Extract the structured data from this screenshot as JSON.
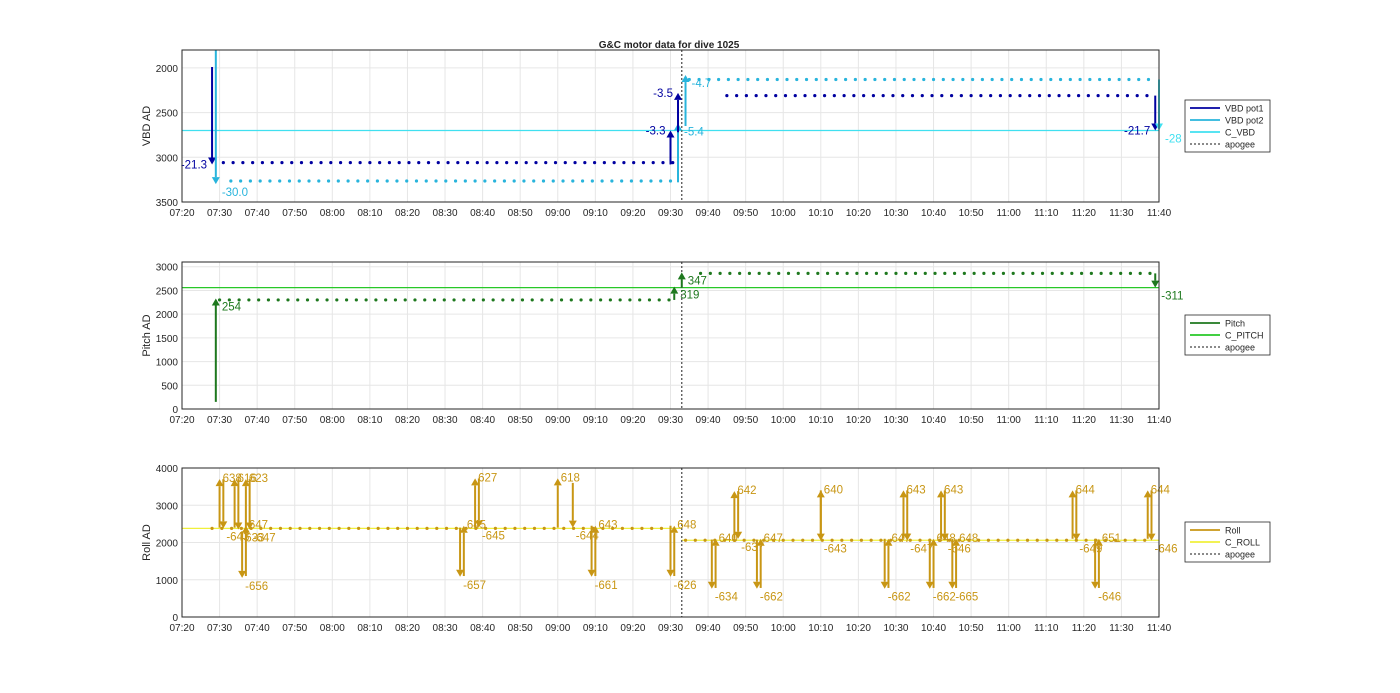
{
  "figure": {
    "title": "G&C motor data for dive 1025"
  },
  "chart_data": [
    {
      "type": "scatter",
      "title": "G&C motor data for dive 1025",
      "xlabel": "",
      "ylabel": "VBD AD",
      "reversed_y": true,
      "xlim": [
        "07:20",
        "11:40"
      ],
      "ylim": [
        1800,
        3500
      ],
      "x_ticks": [
        "07:20",
        "07:30",
        "07:40",
        "07:50",
        "08:00",
        "08:10",
        "08:20",
        "08:30",
        "08:40",
        "08:50",
        "09:00",
        "09:10",
        "09:20",
        "09:30",
        "09:40",
        "09:50",
        "10:00",
        "10:10",
        "10:20",
        "10:30",
        "10:40",
        "10:50",
        "11:00",
        "11:10",
        "11:20",
        "11:30",
        "11:40"
      ],
      "y_ticks": [
        2000,
        2500,
        3000,
        3500
      ],
      "grid": true,
      "legend": {
        "placement": "outside-right",
        "entries": [
          {
            "label": "VBD pot1",
            "color": "#0000a0",
            "style": "solid"
          },
          {
            "label": "VBD pot2",
            "color": "#28b4dc",
            "style": "solid"
          },
          {
            "label": "C_VBD",
            "color": "#40e0f0",
            "style": "solid"
          },
          {
            "label": "apogee",
            "color": "#444444",
            "style": "dotted"
          }
        ]
      },
      "apogee_time": "09:33",
      "series": [
        {
          "name": "VBD pot1",
          "color": "#0000a0",
          "y_segments": [
            {
              "from": "07:31",
              "to": "09:31",
              "y": 3060
            },
            {
              "from": "09:45",
              "to": "11:38",
              "y": 2310
            }
          ]
        },
        {
          "name": "VBD pot2",
          "color": "#28b4dc",
          "y_segments": [
            {
              "from": "07:33",
              "to": "09:31",
              "y": 3265
            },
            {
              "from": "09:35",
              "to": "11:38",
              "y": 2130
            }
          ]
        },
        {
          "name": "C_VBD",
          "color": "#40e0f0",
          "hline": 2700
        }
      ],
      "moves": [
        {
          "t": "07:28",
          "from": 1990,
          "to": 3080,
          "color": "#0000a0",
          "label": "-21.3",
          "label_side": "left"
        },
        {
          "t": "07:29",
          "from": 1800,
          "to": 3300,
          "color": "#28b4dc",
          "label": "-30.0",
          "label_side": "right"
        },
        {
          "t": "09:30",
          "from": 3080,
          "to": 2700,
          "color": "#0000a0",
          "label": "-3.3",
          "label_side": "left"
        },
        {
          "t": "09:32",
          "from": 3280,
          "to": 2620,
          "color": "#28b4dc",
          "label": "-5.4",
          "label_side": "right"
        },
        {
          "t": "09:32",
          "from": 2720,
          "to": 2280,
          "color": "#0000a0",
          "label": "-3.5",
          "label_side": "left"
        },
        {
          "t": "09:34",
          "from": 2650,
          "to": 2080,
          "color": "#28b4dc",
          "label": "-4.7",
          "label_side": "right"
        },
        {
          "t": "11:39",
          "from": 2310,
          "to": 2700,
          "color": "#0000a0",
          "label": "-21.7",
          "label_side": "left"
        },
        {
          "t": "11:40",
          "from": 2130,
          "to": 2700,
          "color": "#40e0f0",
          "label": "-28",
          "label_side": "right"
        }
      ]
    },
    {
      "type": "scatter",
      "xlabel": "",
      "ylabel": "Pitch AD",
      "xlim": [
        "07:20",
        "11:40"
      ],
      "ylim": [
        0,
        3100
      ],
      "x_ticks": [
        "07:20",
        "07:30",
        "07:40",
        "07:50",
        "08:00",
        "08:10",
        "08:20",
        "08:30",
        "08:40",
        "08:50",
        "09:00",
        "09:10",
        "09:20",
        "09:30",
        "09:40",
        "09:50",
        "10:00",
        "10:10",
        "10:20",
        "10:30",
        "10:40",
        "10:50",
        "11:00",
        "11:10",
        "11:20",
        "11:30",
        "11:40"
      ],
      "y_ticks": [
        0,
        500,
        1000,
        1500,
        2000,
        2500,
        3000
      ],
      "grid": true,
      "legend": {
        "placement": "outside-right",
        "entries": [
          {
            "label": "Pitch",
            "color": "#1e781e",
            "style": "solid"
          },
          {
            "label": "C_PITCH",
            "color": "#28c828",
            "style": "solid"
          },
          {
            "label": "apogee",
            "color": "#444444",
            "style": "dotted"
          }
        ]
      },
      "apogee_time": "09:33",
      "series": [
        {
          "name": "Pitch",
          "color": "#1e781e",
          "y_segments": [
            {
              "from": "07:30",
              "to": "09:30",
              "y": 2300
            },
            {
              "from": "09:38",
              "to": "11:38",
              "y": 2860
            }
          ]
        },
        {
          "name": "C_PITCH",
          "color": "#28c828",
          "hline": 2560
        }
      ],
      "moves": [
        {
          "t": "07:29",
          "from": 150,
          "to": 2330,
          "color": "#1e781e",
          "label": "254",
          "label_side": "right"
        },
        {
          "t": "09:31",
          "from": 2300,
          "to": 2580,
          "color": "#1e781e",
          "label": "319",
          "label_side": "right"
        },
        {
          "t": "09:33",
          "from": 2560,
          "to": 2880,
          "color": "#1e781e",
          "label": "347",
          "label_side": "right"
        },
        {
          "t": "11:39",
          "from": 2860,
          "to": 2560,
          "color": "#1e781e",
          "label": "-311",
          "label_side": "right"
        }
      ]
    },
    {
      "type": "scatter",
      "xlabel": "",
      "ylabel": "Roll AD",
      "xlim": [
        "07:20",
        "11:40"
      ],
      "ylim": [
        0,
        4000
      ],
      "x_ticks": [
        "07:20",
        "07:30",
        "07:40",
        "07:50",
        "08:00",
        "08:10",
        "08:20",
        "08:30",
        "08:40",
        "08:50",
        "09:00",
        "09:10",
        "09:20",
        "09:30",
        "09:40",
        "09:50",
        "10:00",
        "10:10",
        "10:20",
        "10:30",
        "10:40",
        "10:50",
        "11:00",
        "11:10",
        "11:20",
        "11:30",
        "11:40"
      ],
      "y_ticks": [
        0,
        1000,
        2000,
        3000,
        4000
      ],
      "grid": true,
      "legend": {
        "placement": "outside-right",
        "entries": [
          {
            "label": "Roll",
            "color": "#c89614",
            "style": "solid"
          },
          {
            "label": "C_ROLL",
            "color": "#f0f03c",
            "style": "solid"
          },
          {
            "label": "apogee",
            "color": "#444444",
            "style": "dotted"
          }
        ]
      },
      "apogee_time": "09:33",
      "series": [
        {
          "name": "Roll",
          "color": "#c89614",
          "y_segments": [
            {
              "from": "07:28",
              "to": "09:30",
              "y": 2380
            },
            {
              "from": "09:34",
              "to": "11:38",
              "y": 2060
            }
          ]
        },
        {
          "name": "C_ROLL",
          "color": "#f0f03c",
          "hline_segments": [
            {
              "from": "07:20",
              "to": "09:33",
              "y": 2380
            },
            {
              "from": "09:33",
              "to": "11:40",
              "y": 2060
            }
          ]
        }
      ],
      "moves": [
        {
          "t": "07:30",
          "from": 2400,
          "to": 3700,
          "label": "638",
          "dir": "up"
        },
        {
          "t": "07:31",
          "from": 3700,
          "to": 2380,
          "label": "-643",
          "dir": "down"
        },
        {
          "t": "07:34",
          "from": 2400,
          "to": 3700,
          "label": "616",
          "dir": "up"
        },
        {
          "t": "07:35",
          "from": 3700,
          "to": 2350,
          "label": "-633",
          "dir": "down"
        },
        {
          "t": "07:36",
          "from": 2300,
          "to": 1050,
          "label": "-656",
          "dir": "down"
        },
        {
          "t": "07:37",
          "from": 1100,
          "to": 2450,
          "label": "647",
          "dir": "up"
        },
        {
          "t": "07:37",
          "from": 2400,
          "to": 3700,
          "label": "623",
          "dir": "up"
        },
        {
          "t": "07:38",
          "from": 3700,
          "to": 2350,
          "label": "-647",
          "dir": "down"
        },
        {
          "t": "08:34",
          "from": 2400,
          "to": 1080,
          "label": "-657",
          "dir": "down"
        },
        {
          "t": "08:35",
          "from": 1100,
          "to": 2450,
          "label": "645",
          "dir": "up"
        },
        {
          "t": "08:38",
          "from": 2400,
          "to": 3720,
          "label": "627",
          "dir": "up"
        },
        {
          "t": "08:39",
          "from": 3720,
          "to": 2400,
          "label": "-645",
          "dir": "down"
        },
        {
          "t": "09:00",
          "from": 2400,
          "to": 3720,
          "label": "618",
          "dir": "up"
        },
        {
          "t": "09:04",
          "from": 3600,
          "to": 2400,
          "label": "-644",
          "dir": "down"
        },
        {
          "t": "09:09",
          "from": 2450,
          "to": 1080,
          "label": "-661",
          "dir": "down"
        },
        {
          "t": "09:10",
          "from": 1100,
          "to": 2450,
          "label": "643",
          "dir": "up"
        },
        {
          "t": "09:30",
          "from": 2450,
          "to": 1080,
          "label": "-626",
          "dir": "down"
        },
        {
          "t": "09:31",
          "from": 1100,
          "to": 2450,
          "label": "648",
          "dir": "up"
        },
        {
          "t": "09:41",
          "from": 2080,
          "to": 760,
          "label": "-634",
          "dir": "down"
        },
        {
          "t": "09:42",
          "from": 780,
          "to": 2100,
          "label": "640",
          "dir": "up"
        },
        {
          "t": "09:47",
          "from": 2100,
          "to": 3380,
          "label": "642",
          "dir": "up"
        },
        {
          "t": "09:48",
          "from": 3380,
          "to": 2100,
          "label": "-637",
          "dir": "down"
        },
        {
          "t": "09:53",
          "from": 2080,
          "to": 760,
          "label": "-662",
          "dir": "down"
        },
        {
          "t": "09:54",
          "from": 780,
          "to": 2100,
          "label": "647",
          "dir": "up"
        },
        {
          "t": "10:10",
          "from": 2100,
          "to": 3400,
          "label": "640",
          "dir": "up"
        },
        {
          "t": "10:10",
          "from": 3400,
          "to": 2050,
          "label": "-643",
          "dir": "down"
        },
        {
          "t": "10:27",
          "from": 2100,
          "to": 760,
          "label": "-662",
          "dir": "down"
        },
        {
          "t": "10:28",
          "from": 780,
          "to": 2100,
          "label": "647",
          "dir": "up"
        },
        {
          "t": "10:32",
          "from": 2100,
          "to": 3400,
          "label": "643",
          "dir": "up"
        },
        {
          "t": "10:33",
          "from": 3400,
          "to": 2050,
          "label": "-647",
          "dir": "down"
        },
        {
          "t": "10:39",
          "from": 2100,
          "to": 760,
          "label": "-662",
          "dir": "down"
        },
        {
          "t": "10:40",
          "from": 780,
          "to": 2100,
          "label": "648",
          "dir": "up"
        },
        {
          "t": "10:42",
          "from": 2100,
          "to": 3400,
          "label": "643",
          "dir": "up"
        },
        {
          "t": "10:43",
          "from": 3400,
          "to": 2050,
          "label": "-646",
          "dir": "down"
        },
        {
          "t": "10:45",
          "from": 2100,
          "to": 760,
          "label": "-665",
          "dir": "down"
        },
        {
          "t": "10:46",
          "from": 780,
          "to": 2100,
          "label": "648",
          "dir": "up"
        },
        {
          "t": "11:17",
          "from": 2100,
          "to": 3400,
          "label": "644",
          "dir": "up"
        },
        {
          "t": "11:18",
          "from": 3400,
          "to": 2050,
          "label": "-649",
          "dir": "down"
        },
        {
          "t": "11:23",
          "from": 2100,
          "to": 760,
          "label": "-646",
          "dir": "down"
        },
        {
          "t": "11:24",
          "from": 780,
          "to": 2100,
          "label": "651",
          "dir": "up"
        },
        {
          "t": "11:37",
          "from": 2100,
          "to": 3400,
          "label": "644",
          "dir": "up"
        },
        {
          "t": "11:38",
          "from": 3400,
          "to": 2050,
          "label": "-646",
          "dir": "down"
        }
      ]
    }
  ]
}
